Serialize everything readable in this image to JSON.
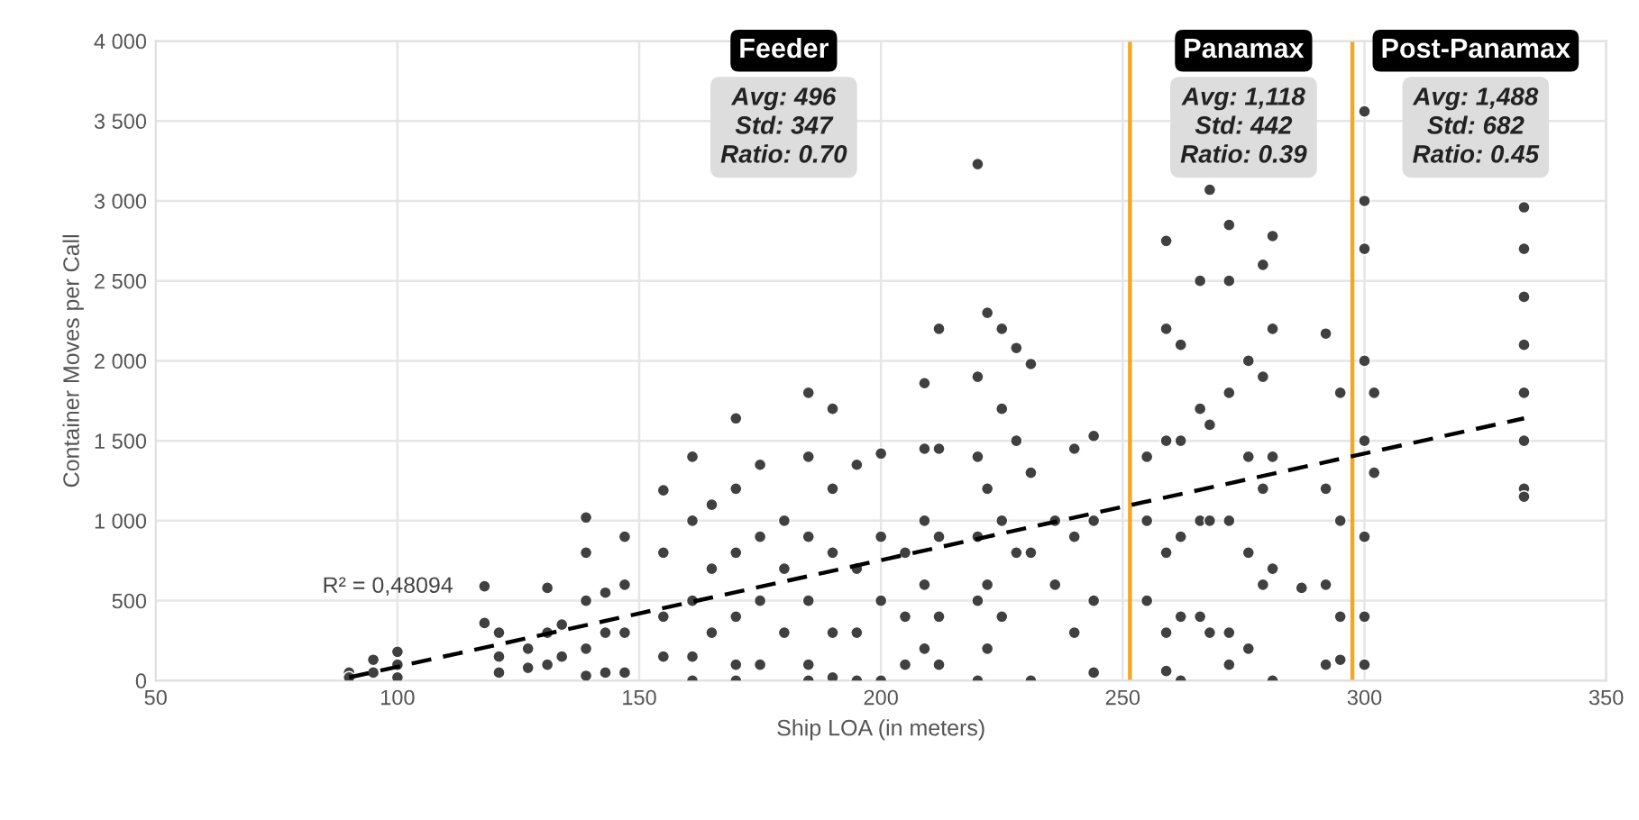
{
  "chart_data": {
    "type": "scatter",
    "xlabel": "Ship LOA (in meters)",
    "ylabel": "Container Moves per Call",
    "xlim": [
      50,
      350
    ],
    "xticks": [
      50,
      100,
      150,
      200,
      250,
      300,
      350
    ],
    "ylim": [
      0,
      4000
    ],
    "yticks": [
      0,
      {
        "value": 500,
        "label": "500"
      },
      {
        "value": 1000,
        "label": "1 000"
      },
      {
        "value": 1500,
        "label": "1 500"
      },
      {
        "value": 2000,
        "label": "2 000"
      },
      {
        "value": 2500,
        "label": "2 500"
      },
      {
        "value": 3000,
        "label": "3 000"
      },
      {
        "value": 3500,
        "label": "3 500"
      },
      {
        "value": 4000,
        "label": "4 000"
      }
    ],
    "grid": true,
    "marker": "circle",
    "series": [
      {
        "color": "#404040",
        "x": [
          90,
          90,
          95,
          95,
          100,
          100,
          100,
          118,
          118,
          121,
          121,
          121,
          127,
          127,
          131,
          131,
          131,
          134,
          134,
          139,
          139,
          139,
          139,
          139,
          143,
          143,
          143,
          147,
          147,
          147,
          147,
          155,
          155,
          155,
          155,
          161,
          161,
          161,
          161,
          161,
          165,
          165,
          165,
          170,
          170,
          170,
          170,
          170,
          170,
          175,
          175,
          175,
          175,
          180,
          180,
          180,
          185,
          185,
          185,
          185,
          185,
          185,
          190,
          190,
          190,
          190,
          190,
          195,
          195,
          195,
          195,
          200,
          200,
          200,
          200,
          205,
          205,
          205,
          209,
          209,
          209,
          209,
          209,
          212,
          212,
          212,
          212,
          212,
          220,
          220,
          220,
          220,
          220,
          220,
          222,
          222,
          222,
          222,
          225,
          225,
          225,
          225,
          228,
          228,
          228,
          231,
          231,
          231,
          231,
          236,
          236,
          240,
          240,
          240,
          244,
          244,
          244,
          244,
          255,
          255,
          255,
          259,
          259,
          259,
          259,
          259,
          259,
          262,
          262,
          262,
          262,
          262,
          266,
          266,
          266,
          266,
          268,
          268,
          268,
          268,
          272,
          272,
          272,
          272,
          272,
          272,
          276,
          276,
          276,
          276,
          279,
          279,
          279,
          279,
          281,
          281,
          281,
          281,
          281,
          287,
          292,
          292,
          292,
          292,
          295,
          295,
          295,
          295,
          300,
          300,
          300,
          300,
          300,
          300,
          300,
          300,
          302,
          302,
          333,
          333,
          333,
          333,
          333,
          333,
          333,
          333
        ],
        "values": [
          50,
          20,
          130,
          50,
          180,
          100,
          20,
          590,
          360,
          300,
          150,
          50,
          200,
          80,
          580,
          300,
          100,
          350,
          150,
          1020,
          800,
          500,
          200,
          30,
          550,
          300,
          50,
          900,
          600,
          300,
          50,
          1190,
          800,
          400,
          150,
          1400,
          1000,
          500,
          150,
          0,
          1100,
          700,
          300,
          1640,
          1200,
          800,
          400,
          100,
          0,
          1350,
          900,
          500,
          100,
          1000,
          700,
          300,
          1800,
          1400,
          900,
          500,
          100,
          0,
          1700,
          1200,
          800,
          300,
          20,
          1350,
          700,
          300,
          0,
          1420,
          900,
          500,
          0,
          800,
          400,
          100,
          1860,
          1450,
          1000,
          600,
          200,
          2200,
          1450,
          900,
          400,
          100,
          3230,
          1900,
          1400,
          900,
          500,
          0,
          2300,
          1200,
          600,
          200,
          2200,
          1700,
          1000,
          400,
          2080,
          1500,
          800,
          1980,
          1300,
          800,
          0,
          1000,
          600,
          1450,
          900,
          300,
          1530,
          1000,
          500,
          50,
          1400,
          1000,
          500,
          2750,
          2200,
          1500,
          800,
          300,
          60,
          2100,
          1500,
          900,
          400,
          0,
          2500,
          1700,
          1000,
          400,
          3070,
          1600,
          1000,
          300,
          2850,
          2500,
          1800,
          1000,
          300,
          100,
          2000,
          1400,
          800,
          200,
          2600,
          1900,
          1200,
          600,
          2780,
          2200,
          1400,
          700,
          0,
          580,
          2170,
          1200,
          600,
          100,
          1800,
          1000,
          400,
          130,
          3560,
          3000,
          2700,
          2000,
          1500,
          900,
          400,
          100,
          1800,
          1300,
          2960,
          2700,
          2400,
          2100,
          1800,
          1500,
          1200,
          1150
        ]
      },
      {
        "type": "line",
        "color": "#000000",
        "line_style": "dashed",
        "marker": "none",
        "x": [
          90,
          333
        ],
        "values": [
          20,
          1640
        ]
      }
    ],
    "ref_lines": [
      {
        "axis": "x",
        "value": 251.5,
        "color": "#f5a623"
      },
      {
        "axis": "x",
        "value": 297.5,
        "color": "#f5a623"
      }
    ],
    "annotations": [
      "R² = 0,48094",
      "Feeder",
      "Avg: 496\nStd: 347\nRatio: 0.70",
      "Panamax",
      "Avg: 1,118\nStd: 442\nRatio: 0.39",
      "Post-Panamax",
      "Avg: 1,488\nStd: 682\nRatio: 0.45"
    ]
  }
}
